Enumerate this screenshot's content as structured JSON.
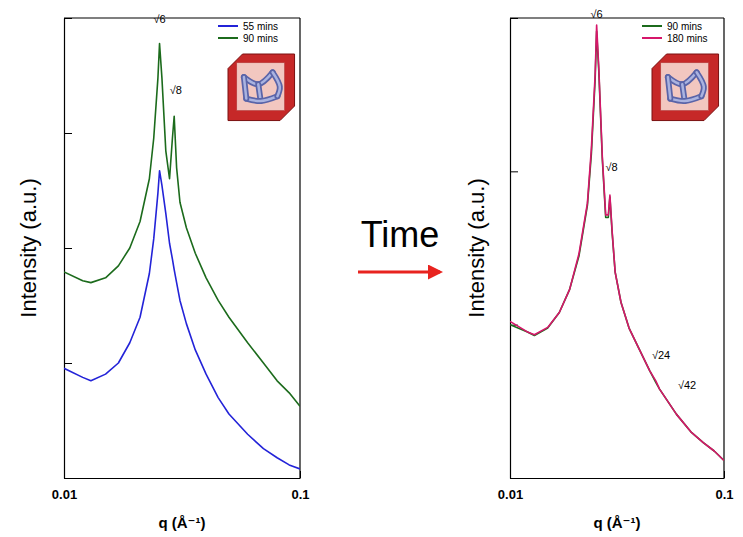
{
  "arrow_label": "Time",
  "chart_data": [
    {
      "type": "line",
      "x_label": "q (Å⁻¹)",
      "y_label": "Intensity (a.u.)",
      "log": true,
      "tick_labels": "x",
      "legend": "top-right",
      "xlim": [
        0.01,
        0.1
      ],
      "ylim": [
        1,
        10000
      ],
      "xticks": [
        0.01,
        0.1
      ],
      "yticks": [
        1,
        10,
        100,
        1000,
        10000
      ],
      "x": [
        0.01,
        0.012,
        0.013,
        0.015,
        0.017,
        0.019,
        0.021,
        0.023,
        0.024,
        0.025,
        0.0254,
        0.026,
        0.027,
        0.028,
        0.0288,
        0.0293,
        0.03,
        0.031,
        0.033,
        0.036,
        0.04,
        0.045,
        0.05,
        0.06,
        0.07,
        0.08,
        0.09,
        0.1
      ],
      "series": [
        {
          "name": "55 mins",
          "color": "#2323d8",
          "values": [
            9,
            7.5,
            7,
            8,
            10,
            15,
            25,
            60,
            120,
            300,
            470,
            350,
            200,
            110,
            80,
            65,
            50,
            35,
            22,
            13,
            8,
            5,
            3.6,
            2.4,
            1.8,
            1.5,
            1.3,
            1.2
          ]
        },
        {
          "name": "90 mins",
          "color": "#1c6b1c",
          "values": [
            62,
            52,
            50,
            55,
            70,
            100,
            170,
            400,
            900,
            3000,
            6000,
            3000,
            700,
            400,
            900,
            1400,
            500,
            250,
            150,
            90,
            55,
            35,
            25,
            15,
            10,
            7,
            5.5,
            4.2
          ]
        }
      ],
      "annotations": [
        {
          "text": "√6",
          "x": 0.0254,
          "y": 9000
        },
        {
          "text": "√8",
          "x": 0.0298,
          "y": 2200
        }
      ]
    },
    {
      "type": "line",
      "x_label": "q (Å⁻¹)",
      "y_label": "Intensity (a.u.)",
      "log": true,
      "tick_labels": "x",
      "legend": "top-right",
      "xlim": [
        0.01,
        0.1
      ],
      "ylim": [
        1,
        1000
      ],
      "xticks": [
        0.01,
        0.1
      ],
      "yticks": [
        1,
        10,
        100,
        1000
      ],
      "x": [
        0.01,
        0.012,
        0.013,
        0.015,
        0.017,
        0.019,
        0.021,
        0.023,
        0.024,
        0.025,
        0.0254,
        0.026,
        0.027,
        0.028,
        0.0288,
        0.0293,
        0.03,
        0.031,
        0.033,
        0.036,
        0.04,
        0.045,
        0.048,
        0.05,
        0.06,
        0.07,
        0.08,
        0.09,
        0.1
      ],
      "series": [
        {
          "name": "90 mins",
          "color": "#1c6b1c",
          "values": [
            10,
            9,
            8.5,
            9.5,
            12,
            17,
            28,
            60,
            130,
            400,
            820,
            450,
            120,
            50,
            50,
            68,
            40,
            22,
            14,
            9.5,
            7,
            5,
            4.2,
            3.8,
            2.6,
            2,
            1.7,
            1.5,
            1.3
          ]
        },
        {
          "name": "180 mins",
          "color": "#d6166a",
          "values": [
            10.5,
            9,
            8.6,
            9.6,
            12,
            17,
            29,
            62,
            140,
            430,
            900,
            470,
            125,
            52,
            52,
            70,
            41,
            22,
            14,
            9.5,
            7,
            5,
            4.3,
            3.8,
            2.6,
            2,
            1.7,
            1.5,
            1.3
          ]
        }
      ],
      "annotations": [
        {
          "text": "√6",
          "x": 0.0254,
          "y": 1000
        },
        {
          "text": "√8",
          "x": 0.0298,
          "y": 100
        },
        {
          "text": "√24",
          "x": 0.0508,
          "y": 6
        },
        {
          "text": "√42",
          "x": 0.0672,
          "y": 3.8
        }
      ]
    }
  ]
}
